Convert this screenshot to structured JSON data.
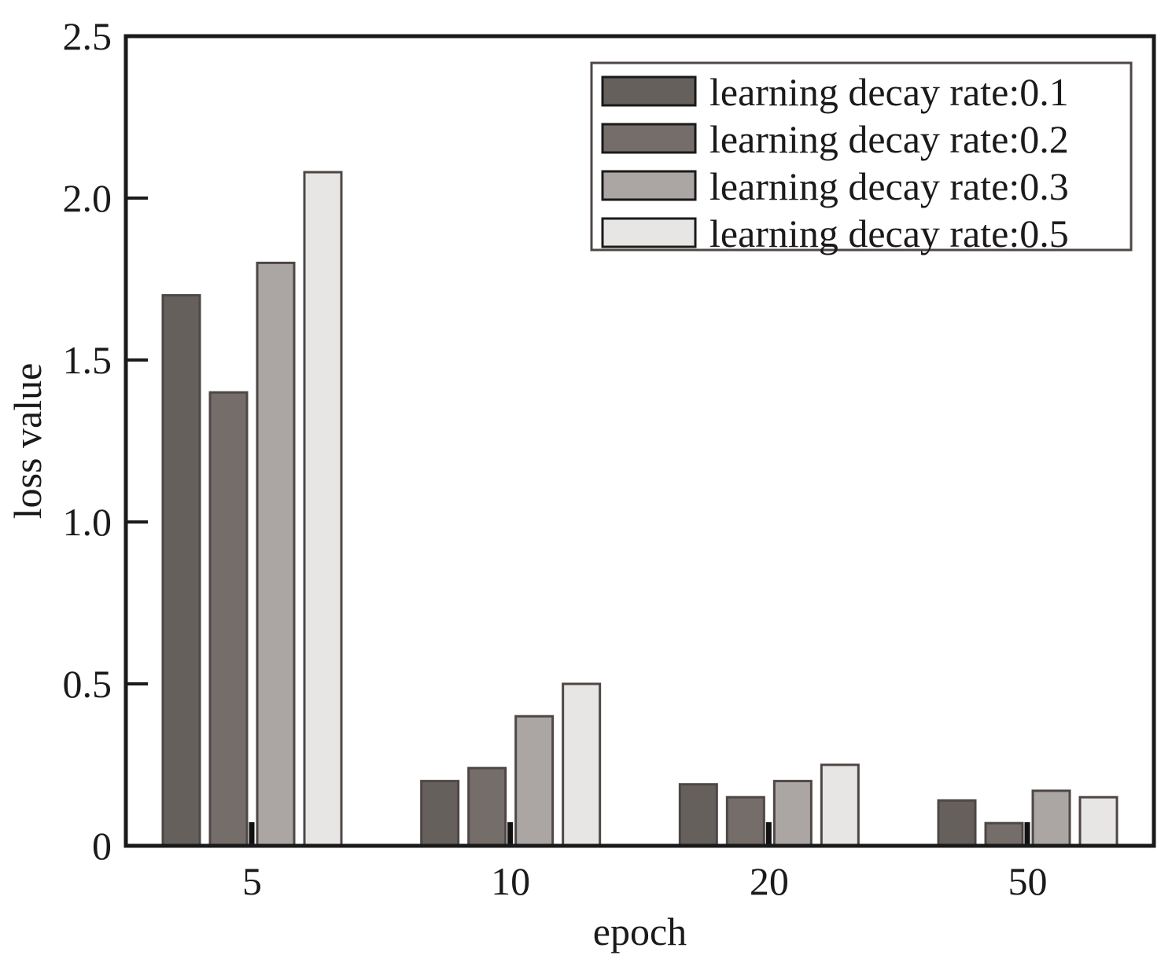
{
  "chart_data": {
    "type": "bar",
    "xlabel": "epoch",
    "ylabel": "loss value",
    "categories": [
      "5",
      "10",
      "20",
      "50"
    ],
    "ylim": [
      0,
      2.5
    ],
    "yticks": [
      0,
      0.5,
      1.0,
      1.5,
      2.0,
      2.5
    ],
    "ytick_labels": [
      "0",
      "0.5",
      "1.0",
      "1.5",
      "2.0",
      "2.5"
    ],
    "legend_position": "top-right",
    "grid": false,
    "series": [
      {
        "name": "learning decay rate:0.1",
        "color": "#66605d",
        "values": [
          1.7,
          0.2,
          0.19,
          0.14
        ]
      },
      {
        "name": "learning decay rate:0.2",
        "color": "#756d6a",
        "values": [
          1.4,
          0.24,
          0.15,
          0.07
        ]
      },
      {
        "name": "learning decay rate:0.3",
        "color": "#aba6a3",
        "values": [
          1.8,
          0.4,
          0.2,
          0.17
        ]
      },
      {
        "name": "learning decay rate:0.5",
        "color": "#e8e6e4",
        "values": [
          2.08,
          0.5,
          0.25,
          0.15
        ]
      }
    ]
  }
}
